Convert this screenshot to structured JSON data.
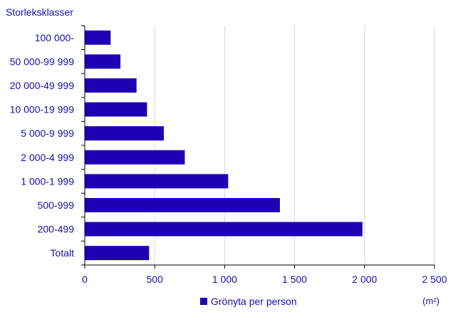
{
  "chart_data": {
    "type": "bar",
    "orientation": "horizontal",
    "title": "Storleksklasser",
    "unit": "(m²)",
    "categories": [
      "100 000-",
      "50 000-99 999",
      "20 000-49 999",
      "10 000-19 999",
      "5 000-9 999",
      "2 000-4 999",
      "1 000-1 999",
      "500-999",
      "200-499",
      "Totalt"
    ],
    "series": [
      {
        "name": "Grönyta per person",
        "values": [
          185,
          255,
          370,
          445,
          565,
          715,
          1025,
          1395,
          1985,
          460
        ]
      }
    ],
    "xlim": [
      0,
      2500
    ],
    "xticks": [
      0,
      500,
      1000,
      1500,
      2000,
      2500
    ],
    "xtick_labels": [
      "0",
      "500",
      "1 000",
      "1 500",
      "2 000",
      "2 500"
    ],
    "grid": "vertical",
    "legend_position": "bottom",
    "colors": {
      "bar": "#1e00b4",
      "text": "#1a0dab",
      "grid": "#d9d9d9",
      "axis": "#000000"
    }
  }
}
